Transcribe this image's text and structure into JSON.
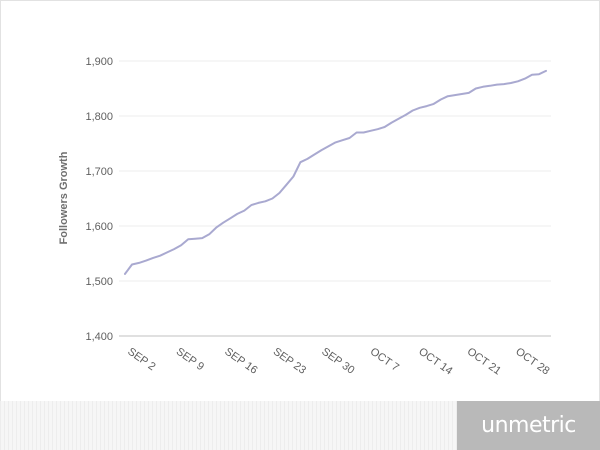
{
  "chart_data": {
    "type": "line",
    "title": "",
    "xlabel": "",
    "ylabel": "Followers Growth",
    "ylim": [
      1400,
      1900
    ],
    "y_ticks": [
      "1,400",
      "1,500",
      "1,600",
      "1,700",
      "1,800",
      "1,900"
    ],
    "x_ticks": [
      "SEP 2",
      "SEP 9",
      "SEP 16",
      "SEP 23",
      "SEP 30",
      "OCT 7",
      "OCT 14",
      "OCT 21",
      "OCT 28"
    ],
    "grid": "horizontal",
    "line_color": "#a9a9d0",
    "series": [
      {
        "values": [
          1513,
          1530,
          1533,
          1537,
          1542,
          1546,
          1552,
          1558,
          1565,
          1576,
          1577,
          1578,
          1585,
          1597,
          1606,
          1614,
          1622,
          1628,
          1638,
          1642,
          1645,
          1650,
          1660,
          1675,
          1690,
          1716,
          1722,
          1730,
          1738,
          1745,
          1752,
          1756,
          1760,
          1770,
          1770,
          1773,
          1776,
          1780,
          1788,
          1795,
          1802,
          1810,
          1815,
          1818,
          1822,
          1830,
          1836,
          1838,
          1840,
          1842,
          1850,
          1853,
          1855,
          1857,
          1858,
          1860,
          1863,
          1868,
          1875,
          1876,
          1882
        ]
      }
    ]
  },
  "footer": {
    "brand": "unmetric"
  }
}
